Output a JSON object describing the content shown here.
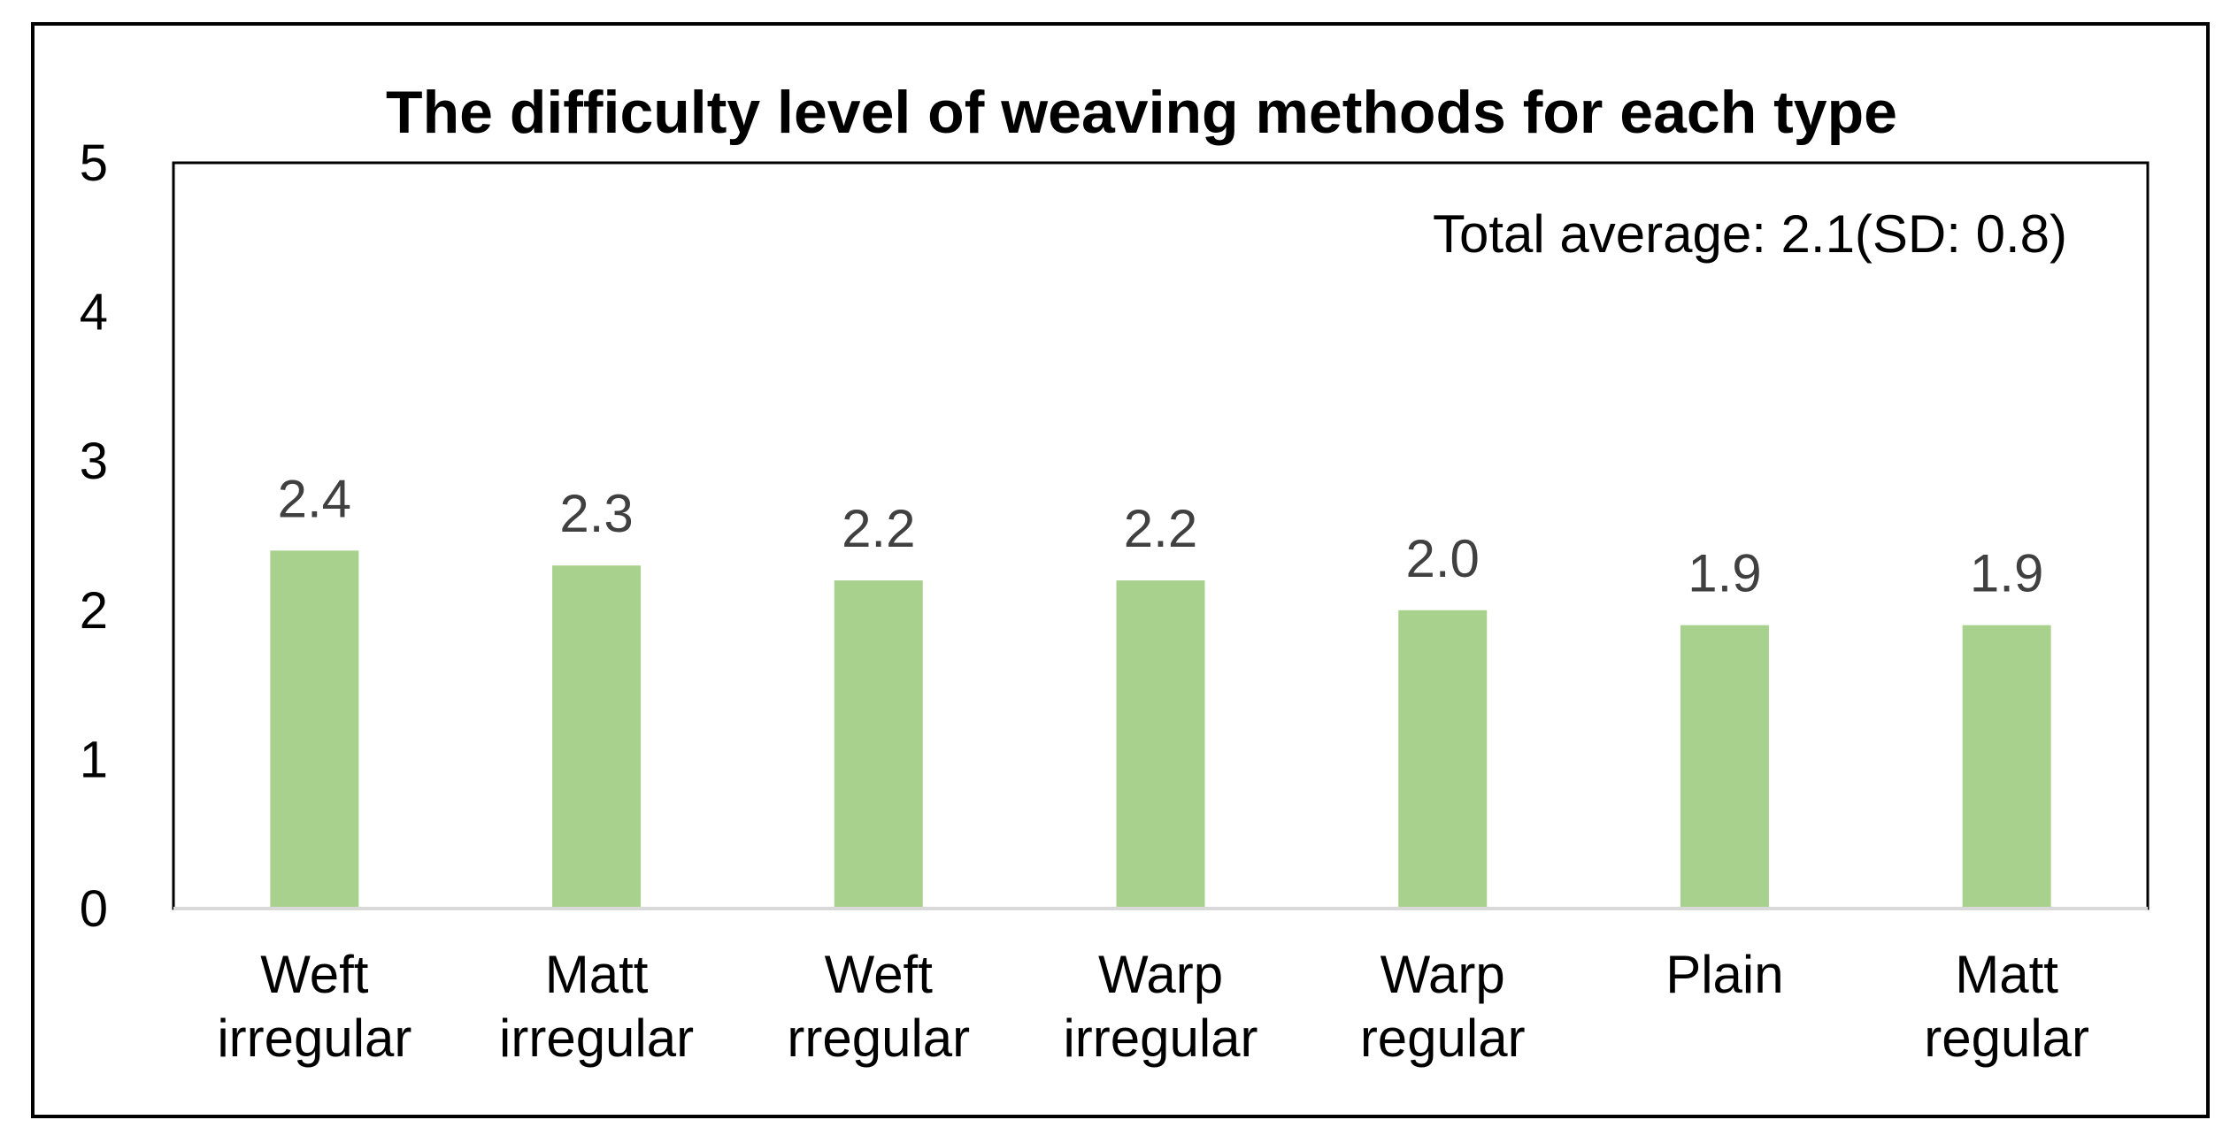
{
  "chart_data": {
    "type": "bar",
    "title": "The difficulty level of weaving methods for each type",
    "categories": [
      [
        "Weft",
        "irregular"
      ],
      [
        "Matt",
        "irregular"
      ],
      [
        "Weft",
        "rregular"
      ],
      [
        "Warp",
        "irregular"
      ],
      [
        "Warp",
        "regular"
      ],
      [
        "Plain"
      ],
      [
        "Matt",
        "regular"
      ]
    ],
    "values": [
      2.4,
      2.3,
      2.2,
      2.2,
      2.0,
      1.9,
      1.9
    ],
    "data_labels": [
      "2.4",
      "2.3",
      "2.2",
      "2.2",
      "2.0",
      "1.9",
      "1.9"
    ],
    "y_ticks": [
      "0",
      "1",
      "2",
      "3",
      "4",
      "5"
    ],
    "ylim": [
      0,
      5
    ],
    "xlabel": "",
    "ylabel": "",
    "grid": false,
    "legend": false,
    "annotation": "Total average: 2.1(SD: 0.8)",
    "bar_color": "#a9d18e",
    "axis_color": "#d9d9d9",
    "frame_color": "#000000",
    "label_color": "#404040"
  }
}
